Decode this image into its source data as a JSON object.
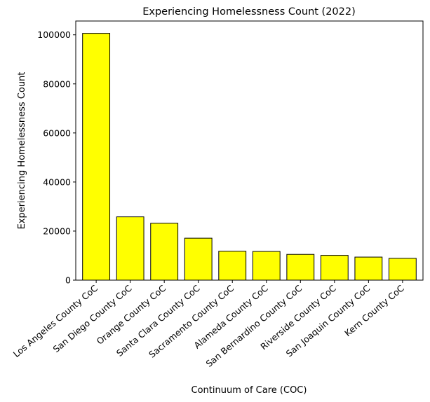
{
  "chart_data": {
    "type": "bar",
    "title": "Experiencing Homelessness Count (2022)",
    "xlabel": "Continuum of Care (COC)",
    "ylabel": "Experiencing Homelessness Count",
    "categories": [
      "Los Angeles County CoC",
      "San Diego County CoC",
      "Orange County CoC",
      "Santa Clara County CoC",
      "Sacramento County CoC",
      "Alameda County CoC",
      "San Bernardino County CoC",
      "Riverside County CoC",
      "San Joaquin County CoC",
      "Kern County CoC"
    ],
    "values": [
      100600,
      25800,
      23200,
      17100,
      11800,
      11700,
      10500,
      10100,
      9400,
      8900
    ],
    "ylim": [
      0,
      105630
    ],
    "yticks": [
      0,
      20000,
      40000,
      60000,
      80000,
      100000
    ],
    "grid": false,
    "legend": "none",
    "bar_color": "#ffff00",
    "edge_color": "#000000"
  }
}
